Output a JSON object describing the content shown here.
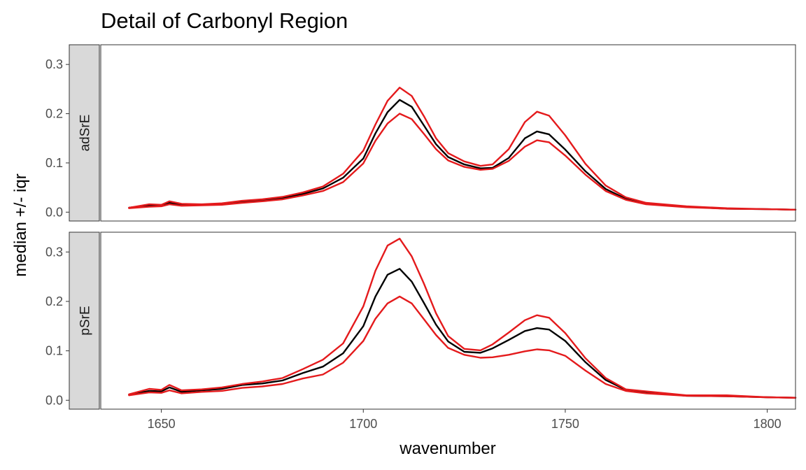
{
  "chart_data": {
    "type": "line",
    "title": "Detail of Carbonyl Region",
    "xlabel": "wavenumber",
    "ylabel": "median +/- iqr",
    "xlim": [
      1635,
      1807
    ],
    "ylim": [
      -0.018,
      0.34
    ],
    "x_ticks": [
      1650,
      1700,
      1750,
      1800
    ],
    "x_tick_labels": [
      "1650",
      "1700",
      "1750",
      "1800"
    ],
    "y_ticks": [
      0.0,
      0.1,
      0.2,
      0.3
    ],
    "y_tick_labels": [
      "0.0",
      "0.1",
      "0.2",
      "0.3"
    ],
    "grid": false,
    "colors": {
      "median": "#000000",
      "iqr": "#e41a1c",
      "strip": "#d9d9d9",
      "panel_border": "#333333"
    },
    "panels": [
      {
        "label": "adSrE",
        "x": [
          1642,
          1647,
          1650,
          1652,
          1655,
          1660,
          1665,
          1670,
          1675,
          1680,
          1685,
          1690,
          1695,
          1700,
          1703,
          1706,
          1709,
          1712,
          1715,
          1718,
          1721,
          1725,
          1729,
          1732,
          1736,
          1740,
          1743,
          1746,
          1750,
          1755,
          1760,
          1765,
          1770,
          1780,
          1790,
          1800,
          1807
        ],
        "series": [
          {
            "role": "upper",
            "values": [
              0.009,
              0.016,
              0.015,
              0.022,
              0.017,
              0.016,
              0.018,
              0.023,
              0.026,
              0.031,
              0.04,
              0.052,
              0.078,
              0.125,
              0.178,
              0.226,
              0.253,
              0.236,
              0.195,
              0.15,
              0.12,
              0.103,
              0.094,
              0.097,
              0.128,
              0.183,
              0.204,
              0.196,
              0.156,
              0.098,
              0.054,
              0.03,
              0.019,
              0.012,
              0.008,
              0.006,
              0.005
            ]
          },
          {
            "role": "median",
            "values": [
              0.009,
              0.014,
              0.014,
              0.019,
              0.015,
              0.015,
              0.016,
              0.021,
              0.024,
              0.028,
              0.037,
              0.048,
              0.07,
              0.109,
              0.16,
              0.203,
              0.228,
              0.214,
              0.176,
              0.138,
              0.112,
              0.097,
              0.089,
              0.09,
              0.11,
              0.15,
              0.164,
              0.158,
              0.127,
              0.083,
              0.047,
              0.027,
              0.017,
              0.011,
              0.007,
              0.006,
              0.005
            ]
          },
          {
            "role": "lower",
            "values": [
              0.008,
              0.011,
              0.012,
              0.016,
              0.013,
              0.014,
              0.015,
              0.019,
              0.022,
              0.026,
              0.034,
              0.043,
              0.061,
              0.099,
              0.145,
              0.18,
              0.2,
              0.189,
              0.159,
              0.128,
              0.105,
              0.092,
              0.086,
              0.088,
              0.104,
              0.133,
              0.146,
              0.142,
              0.115,
              0.076,
              0.043,
              0.025,
              0.016,
              0.01,
              0.007,
              0.006,
              0.005
            ]
          }
        ]
      },
      {
        "label": "pSrE",
        "x": [
          1642,
          1647,
          1650,
          1652,
          1655,
          1660,
          1665,
          1670,
          1675,
          1680,
          1685,
          1690,
          1695,
          1700,
          1703,
          1706,
          1709,
          1712,
          1715,
          1718,
          1721,
          1725,
          1729,
          1732,
          1736,
          1740,
          1743,
          1746,
          1750,
          1755,
          1760,
          1765,
          1770,
          1780,
          1790,
          1800,
          1807
        ],
        "series": [
          {
            "role": "upper",
            "values": [
              0.012,
              0.023,
              0.021,
              0.031,
              0.02,
              0.022,
              0.026,
              0.033,
              0.038,
              0.045,
              0.063,
              0.082,
              0.115,
              0.19,
              0.262,
              0.313,
              0.327,
              0.291,
              0.236,
              0.176,
              0.13,
              0.104,
              0.101,
              0.113,
              0.137,
              0.162,
              0.172,
              0.167,
              0.136,
              0.085,
              0.045,
              0.022,
              0.018,
              0.01,
              0.01,
              0.006,
              0.005
            ]
          },
          {
            "role": "median",
            "values": [
              0.011,
              0.019,
              0.018,
              0.026,
              0.017,
              0.02,
              0.023,
              0.031,
              0.034,
              0.04,
              0.055,
              0.068,
              0.095,
              0.15,
              0.21,
              0.254,
              0.266,
              0.24,
              0.197,
              0.153,
              0.119,
              0.098,
              0.096,
              0.105,
              0.122,
              0.14,
              0.146,
              0.143,
              0.12,
              0.077,
              0.041,
              0.021,
              0.017,
              0.009,
              0.008,
              0.006,
              0.005
            ]
          },
          {
            "role": "lower",
            "values": [
              0.01,
              0.016,
              0.015,
              0.02,
              0.014,
              0.017,
              0.019,
              0.025,
              0.028,
              0.033,
              0.044,
              0.052,
              0.076,
              0.12,
              0.165,
              0.196,
              0.21,
              0.196,
              0.164,
              0.132,
              0.106,
              0.092,
              0.086,
              0.087,
              0.092,
              0.099,
              0.103,
              0.101,
              0.09,
              0.06,
              0.033,
              0.019,
              0.014,
              0.009,
              0.008,
              0.006,
              0.005
            ]
          }
        ]
      }
    ]
  }
}
